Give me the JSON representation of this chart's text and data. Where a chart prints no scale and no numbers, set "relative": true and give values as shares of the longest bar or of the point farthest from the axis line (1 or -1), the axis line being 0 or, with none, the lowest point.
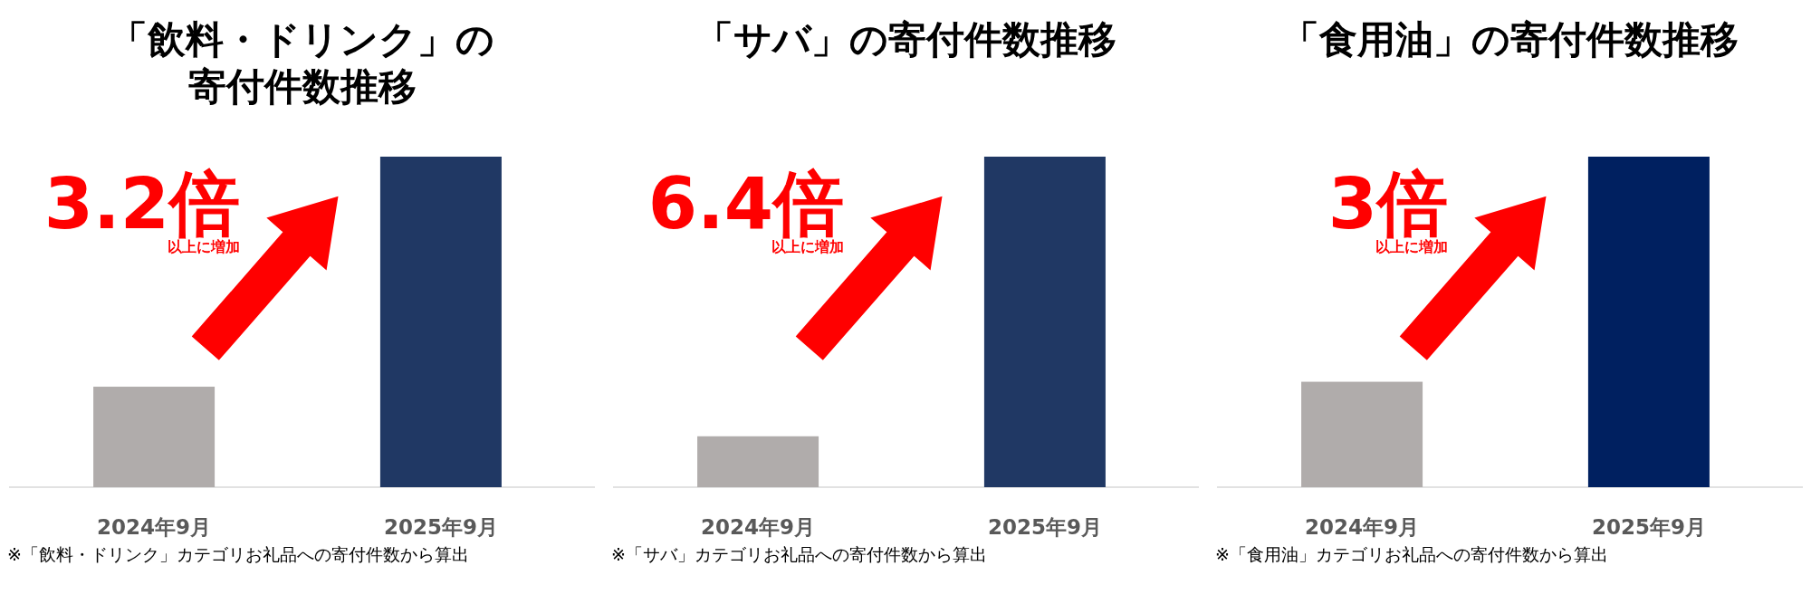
{
  "chart_data": [
    {
      "type": "bar",
      "title": "「飲料・ドリンク」の寄付件数推移",
      "categories": [
        "2024年9月",
        "2025年9月"
      ],
      "values": [
        0.304,
        1
      ],
      "colors": [
        "#b0acab",
        "#203864"
      ],
      "relative": true,
      "annotations": [
        "3.2倍",
        "以上に増加",
        "※「飲料・ドリンク」カテゴリお礼品への寄付件数から算出"
      ]
    },
    {
      "type": "bar",
      "title": "「サバ」の寄付件数推移",
      "categories": [
        "2024年9月",
        "2025年9月"
      ],
      "values": [
        0.154,
        1
      ],
      "colors": [
        "#b0acab",
        "#203864"
      ],
      "relative": true,
      "annotations": [
        "6.4倍",
        "以上に増加",
        "※「サバ」カテゴリお礼品への寄付件数から算出"
      ]
    },
    {
      "type": "bar",
      "title": "「食用油」の寄付件数推移",
      "categories": [
        "2024年9月",
        "2025年9月"
      ],
      "values": [
        0.319,
        1
      ],
      "colors": [
        "#b0acab",
        "#002060"
      ],
      "relative": true,
      "annotations": [
        "3倍",
        "以上に増加",
        "※「食用油」カテゴリお礼品への寄付件数から算出"
      ]
    }
  ]
}
